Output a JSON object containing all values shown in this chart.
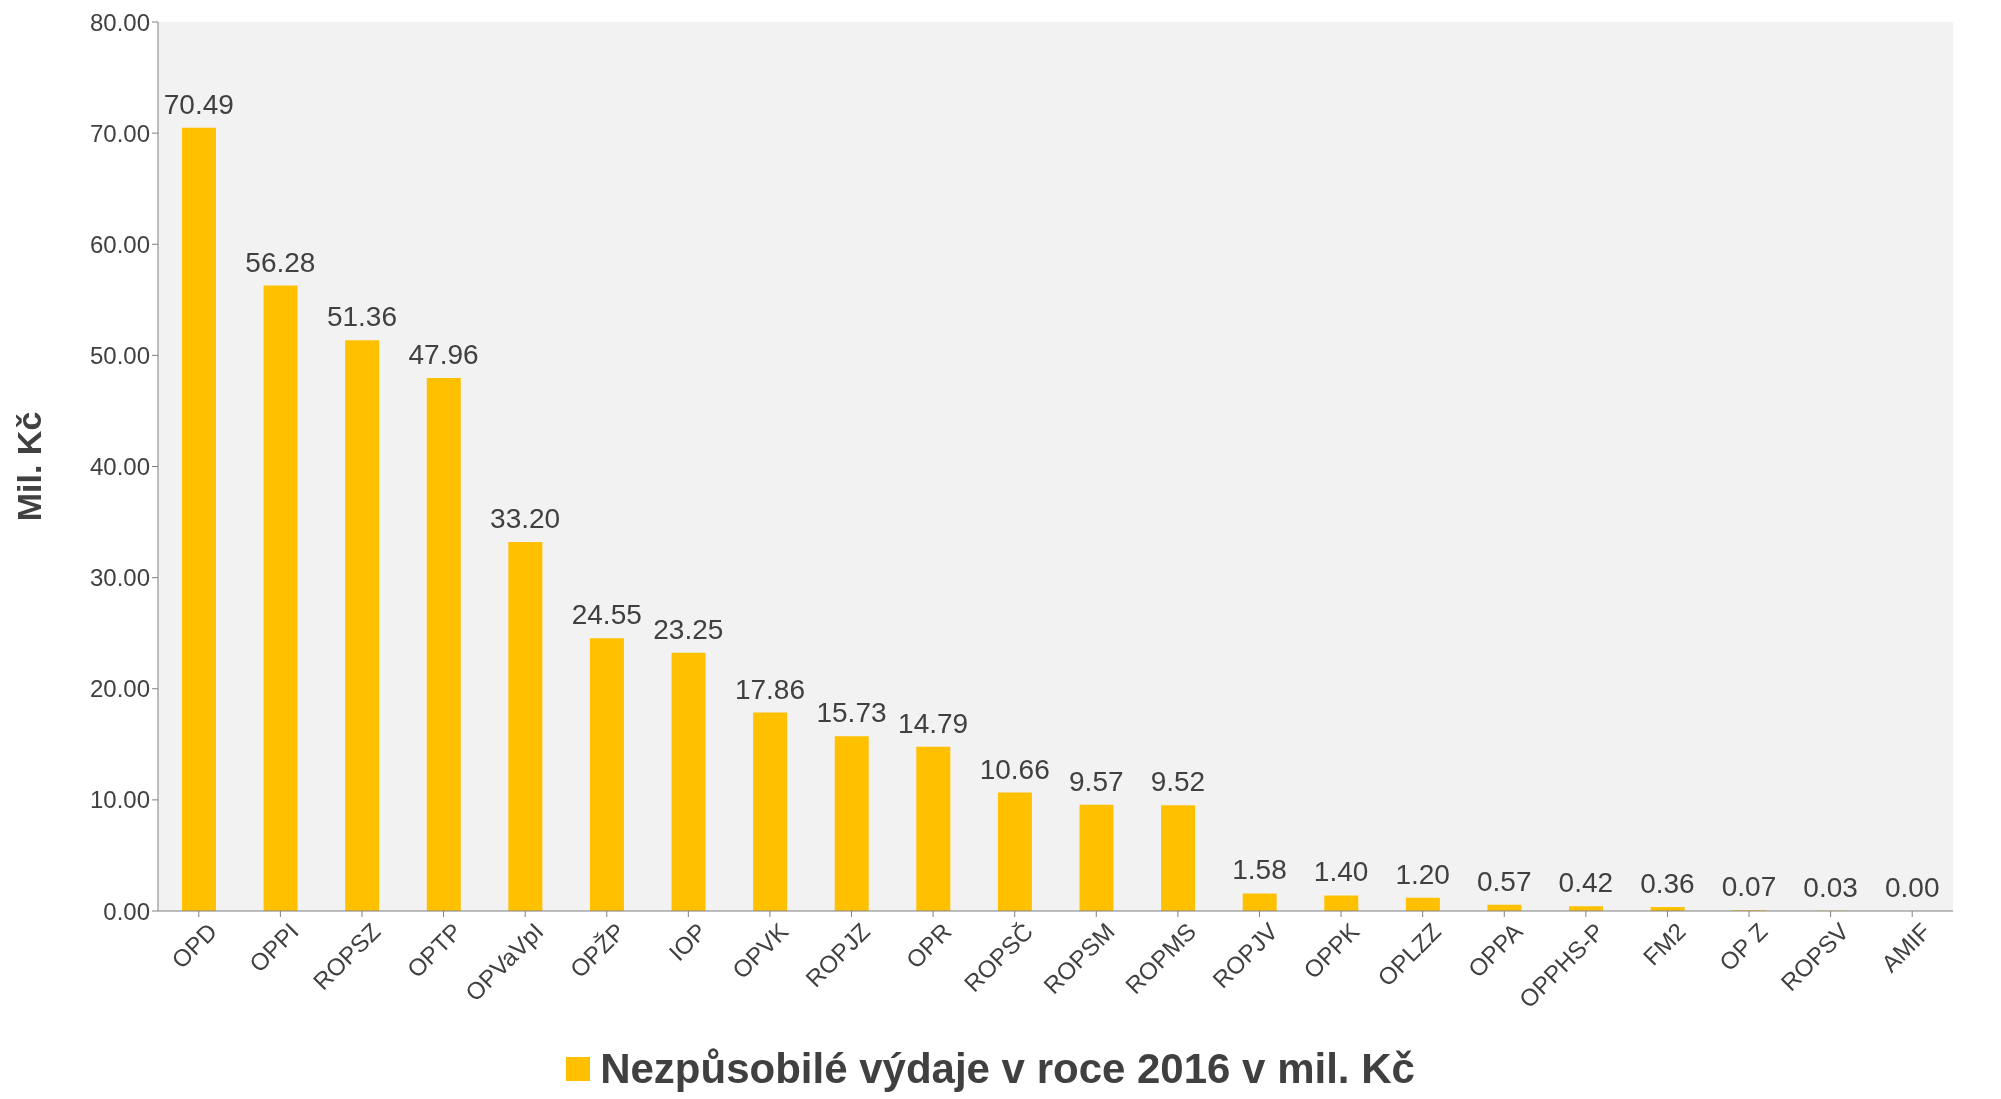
{
  "chart_data": {
    "type": "bar",
    "ylabel": "Mil. Kč",
    "categories": [
      "OPD",
      "OPPI",
      "ROPSZ",
      "OPTP",
      "OPVaVpI",
      "OPŽP",
      "IOP",
      "OPVK",
      "ROPJZ",
      "OPR",
      "ROPSČ",
      "ROPSM",
      "ROPMS",
      "ROPJV",
      "OPPK",
      "OPLZZ",
      "OPPA",
      "OPPHS-P",
      "FM2",
      "OP Z",
      "ROPSV",
      "AMIF"
    ],
    "series": [
      {
        "name": "Nezpůsobilé výdaje v roce 2016 v mil. Kč",
        "color": "#ffc000",
        "values": [
          70.49,
          56.28,
          51.36,
          47.96,
          33.2,
          24.55,
          23.25,
          17.86,
          15.73,
          14.79,
          10.66,
          9.57,
          9.52,
          1.58,
          1.4,
          1.2,
          0.57,
          0.42,
          0.36,
          0.07,
          0.03,
          0
        ],
        "value_labels": [
          "70.49",
          "56.28",
          "51.36",
          "47.96",
          "33.20",
          "24.55",
          "23.25",
          "17.86",
          "15.73",
          "14.79",
          "10.66",
          "9.57",
          "9.52",
          "1.58",
          "1.40",
          "1.20",
          "0.57",
          "0.42",
          "0.36",
          "0.07",
          "0.03",
          "0.00"
        ]
      }
    ],
    "ylim": [
      0,
      80
    ],
    "yticks": [
      {
        "value": 0,
        "label": "0.00"
      },
      {
        "value": 10,
        "label": "10.00"
      },
      {
        "value": 20,
        "label": "20.00"
      },
      {
        "value": 30,
        "label": "30.00"
      },
      {
        "value": 40,
        "label": "40.00"
      },
      {
        "value": 50,
        "label": "50.00"
      },
      {
        "value": 60,
        "label": "60.00"
      },
      {
        "value": 70,
        "label": "70.00"
      },
      {
        "value": 80,
        "label": "80.00"
      }
    ],
    "grid": false,
    "legend": "bottom"
  }
}
